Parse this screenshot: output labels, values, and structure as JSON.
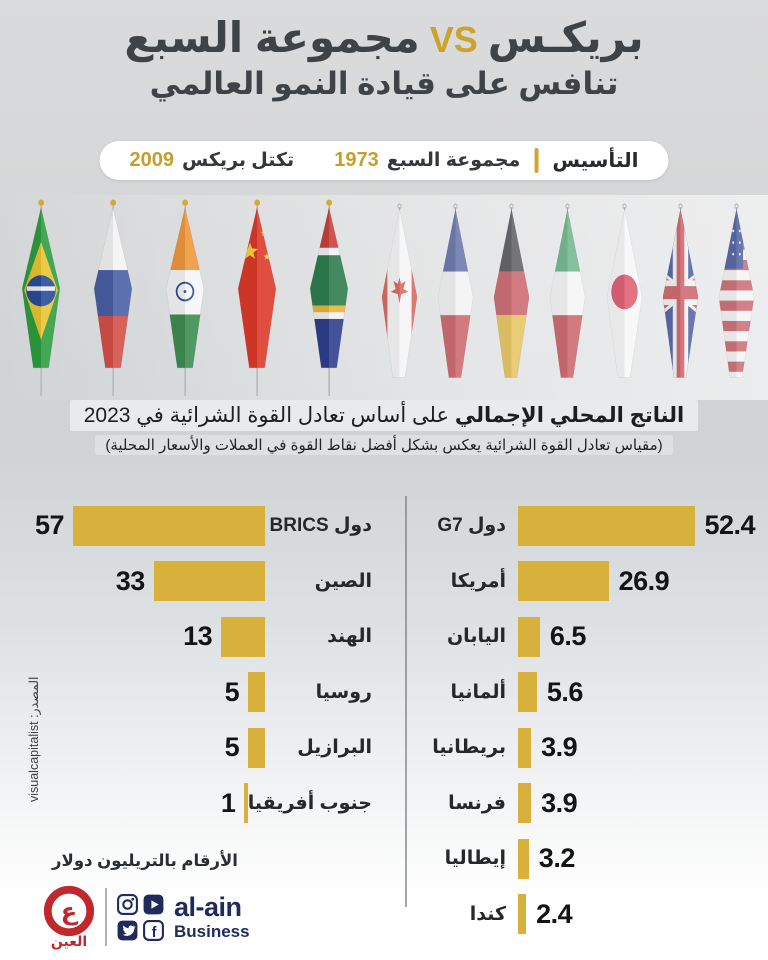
{
  "header": {
    "title_part1": "بريكـس",
    "title_vs": "VS",
    "title_part2": "مجموعة السبع",
    "title_line2": "تنافس على قيادة النمو العالمي"
  },
  "founding": {
    "label": "التأسيس",
    "g7_text": "مجموعة السبع",
    "g7_year": "1973",
    "brics_text": "تكتل بريكس",
    "brics_year": "2009"
  },
  "flags": {
    "brics": [
      "brazil",
      "russia",
      "india",
      "china",
      "south-africa"
    ],
    "g7": [
      "canada",
      "france",
      "germany",
      "italy",
      "japan",
      "uk",
      "usa"
    ]
  },
  "chart_data": {
    "type": "bar",
    "orientation": "horizontal-mirrored",
    "title": "الناتج المحلي الإجمالي على أساس تعادل القوة الشرائية في 2023",
    "title_bold": "الناتج المحلي الإجمالي",
    "title_rest": "على أساس تعادل القوة الشرائية في 2023",
    "subtitle": "(مقياس تعادل القوة الشرائية يعكس بشكل أفضل نقاط القوة في العملات والأسعار المحلية)",
    "unit_note": "الأرقام بالتريليون دولار",
    "source": "المصدر: visualcapitalist",
    "bar_color": "#D7B13C",
    "max_scale": 57,
    "series": [
      {
        "name": "BRICS",
        "side": "left",
        "rows": [
          {
            "label": "دول BRICS",
            "value": 57
          },
          {
            "label": "الصين",
            "value": 33
          },
          {
            "label": "الهند",
            "value": 13
          },
          {
            "label": "روسيا",
            "value": 5
          },
          {
            "label": "البرازيل",
            "value": 5
          },
          {
            "label": "جنوب أفريقيا",
            "value": 1
          }
        ]
      },
      {
        "name": "G7",
        "side": "right",
        "rows": [
          {
            "label": "دول G7",
            "value": 52.4
          },
          {
            "label": "أمريكا",
            "value": 26.9
          },
          {
            "label": "اليابان",
            "value": 6.5
          },
          {
            "label": "ألمانيا",
            "value": 5.6
          },
          {
            "label": "بريطانيا",
            "value": 3.9
          },
          {
            "label": "فرنسا",
            "value": 3.9
          },
          {
            "label": "إيطاليا",
            "value": 3.2
          },
          {
            "label": "كندا",
            "value": 2.4
          }
        ]
      }
    ]
  },
  "logo": {
    "arabic_name": "العين",
    "brand_text": "al-ain",
    "brand_sub": "Business",
    "social_icons": [
      "instagram-icon",
      "youtube-icon",
      "twitter-icon",
      "facebook-icon"
    ],
    "colors": {
      "red": "#C1272D",
      "navy": "#1F2B5B",
      "gold": "#D7B13C"
    }
  }
}
